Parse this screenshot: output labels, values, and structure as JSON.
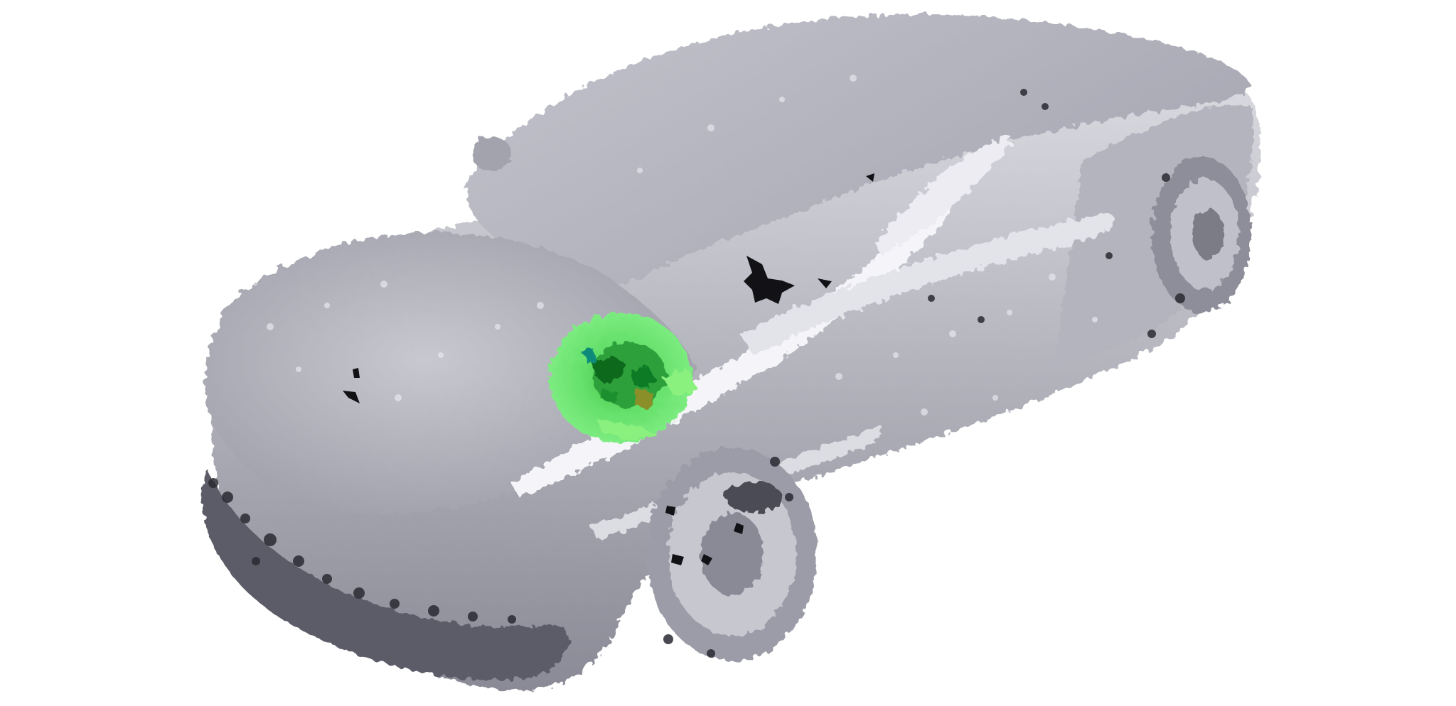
{
  "scene": {
    "subject": "car-point-cloud",
    "background_color": "#ffffff",
    "body_colors": [
      "#f4f4f8",
      "#d6d6de",
      "#b9b9c4",
      "#9a9aa6",
      "#6e6e7a",
      "#3f3f48",
      "#1c1c22"
    ],
    "highlight": {
      "colors": [
        "#66e06c",
        "#8af07e",
        "#3fbf3f",
        "#1f8f2a",
        "#0b6b1f",
        "#0e8a7a",
        "#8a8f2a"
      ]
    }
  }
}
